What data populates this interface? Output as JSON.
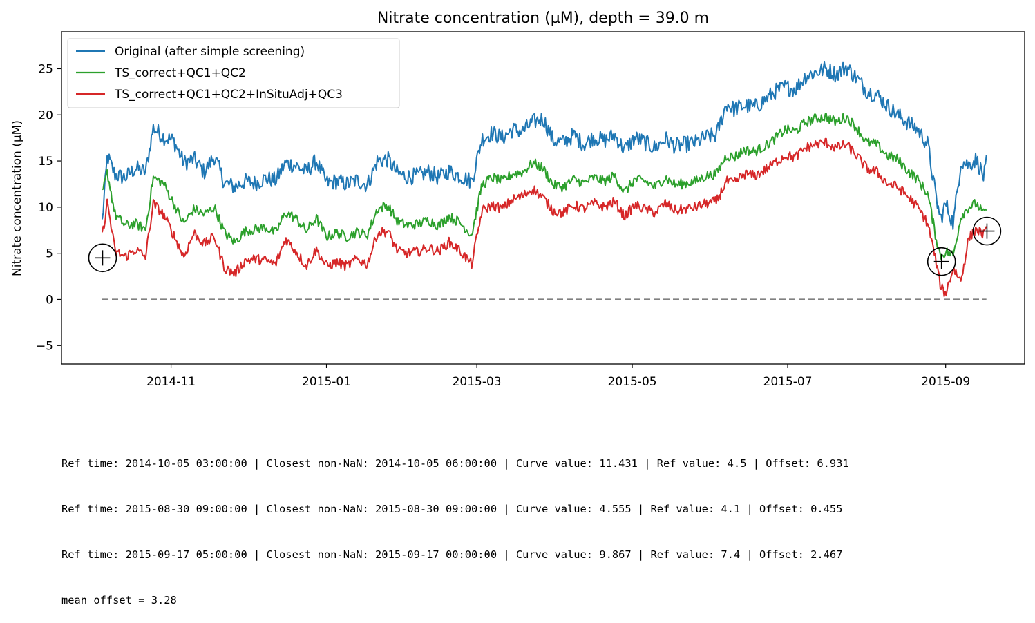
{
  "chart_data": {
    "type": "line",
    "title": "Nitrate concentration (µM), depth = 39.0 m",
    "xlabel": "",
    "ylabel": "Nitrate concentration (µM)",
    "xlim": [
      "2014-09-19",
      "2015-10-02"
    ],
    "ylim": [
      -7,
      29
    ],
    "x_ticks": [
      "2014-11",
      "2015-01",
      "2015-03",
      "2015-05",
      "2015-07",
      "2015-09"
    ],
    "y_ticks": [
      -5,
      0,
      5,
      10,
      15,
      20,
      25
    ],
    "grid": false,
    "legend_position": "upper-left",
    "colors": {
      "original": "#1f77b4",
      "qc2": "#2ca02c",
      "qc3": "#d62728",
      "zero_line": "#808080",
      "ref_marker": "#000000"
    },
    "series": [
      {
        "name": "Original (after simple screening)",
        "key": "original",
        "x": [
          "2014-10-05",
          "2014-10-07",
          "2014-10-10",
          "2014-10-14",
          "2014-10-18",
          "2014-10-22",
          "2014-10-25",
          "2014-10-29",
          "2014-11-02",
          "2014-11-06",
          "2014-11-10",
          "2014-11-14",
          "2014-11-18",
          "2014-11-22",
          "2014-11-26",
          "2014-11-30",
          "2014-12-04",
          "2014-12-08",
          "2014-12-12",
          "2014-12-16",
          "2014-12-20",
          "2014-12-24",
          "2014-12-28",
          "2015-01-01",
          "2015-01-05",
          "2015-01-09",
          "2015-01-13",
          "2015-01-17",
          "2015-01-21",
          "2015-01-25",
          "2015-01-29",
          "2015-02-02",
          "2015-02-06",
          "2015-02-10",
          "2015-02-14",
          "2015-02-18",
          "2015-02-22",
          "2015-02-27",
          "2015-03-03",
          "2015-03-07",
          "2015-03-11",
          "2015-03-15",
          "2015-03-19",
          "2015-03-23",
          "2015-03-27",
          "2015-03-31",
          "2015-04-04",
          "2015-04-08",
          "2015-04-12",
          "2015-04-16",
          "2015-04-20",
          "2015-04-24",
          "2015-04-28",
          "2015-05-02",
          "2015-05-06",
          "2015-05-10",
          "2015-05-14",
          "2015-05-18",
          "2015-05-22",
          "2015-05-26",
          "2015-05-30",
          "2015-06-03",
          "2015-06-07",
          "2015-06-10",
          "2015-06-14",
          "2015-06-18",
          "2015-06-22",
          "2015-06-26",
          "2015-06-30",
          "2015-07-04",
          "2015-07-08",
          "2015-07-12",
          "2015-07-16",
          "2015-07-20",
          "2015-07-24",
          "2015-07-28",
          "2015-08-01",
          "2015-08-05",
          "2015-08-09",
          "2015-08-13",
          "2015-08-17",
          "2015-08-21",
          "2015-08-25",
          "2015-08-28",
          "2015-08-30",
          "2015-09-01",
          "2015-09-04",
          "2015-09-07",
          "2015-09-10",
          "2015-09-13",
          "2015-09-16",
          "2015-09-17"
        ],
        "values": [
          8.4,
          15.5,
          13.5,
          13.2,
          14.2,
          13.8,
          18.6,
          17.6,
          17.2,
          14.8,
          15.2,
          13.8,
          15.5,
          12.6,
          12.2,
          12.8,
          12.6,
          13.1,
          12.9,
          14.8,
          14.5,
          13.8,
          15.0,
          12.6,
          12.8,
          12.5,
          12.9,
          12.4,
          15.0,
          15.2,
          13.6,
          13.3,
          13.4,
          13.8,
          13.2,
          13.9,
          13.4,
          12.8,
          17.4,
          18.0,
          17.5,
          18.4,
          18.2,
          19.2,
          19.6,
          17.2,
          17.0,
          17.8,
          16.8,
          17.6,
          17.2,
          17.8,
          16.2,
          17.5,
          17.0,
          16.4,
          17.4,
          16.6,
          16.8,
          17.0,
          17.6,
          17.8,
          21.2,
          20.6,
          21.0,
          20.8,
          21.6,
          22.5,
          23.0,
          22.8,
          24.2,
          24.6,
          25.0,
          24.4,
          25.2,
          24.0,
          22.6,
          22.2,
          21.0,
          20.0,
          19.2,
          18.4,
          16.8,
          11.4,
          8.6,
          10.4,
          8.2,
          15.0,
          14.6,
          15.2,
          13.2,
          14.8
        ]
      },
      {
        "name": "TS_correct+QC1+QC2",
        "key": "qc2",
        "x": [
          "2014-10-05",
          "2014-10-07",
          "2014-10-10",
          "2014-10-14",
          "2014-10-18",
          "2014-10-22",
          "2014-10-25",
          "2014-10-29",
          "2014-11-02",
          "2014-11-06",
          "2014-11-10",
          "2014-11-14",
          "2014-11-18",
          "2014-11-22",
          "2014-11-26",
          "2014-11-30",
          "2014-12-04",
          "2014-12-08",
          "2014-12-12",
          "2014-12-16",
          "2014-12-20",
          "2014-12-24",
          "2014-12-28",
          "2015-01-01",
          "2015-01-05",
          "2015-01-09",
          "2015-01-13",
          "2015-01-17",
          "2015-01-21",
          "2015-01-25",
          "2015-01-29",
          "2015-02-02",
          "2015-02-06",
          "2015-02-10",
          "2015-02-14",
          "2015-02-18",
          "2015-02-22",
          "2015-02-27",
          "2015-03-03",
          "2015-03-07",
          "2015-03-11",
          "2015-03-15",
          "2015-03-19",
          "2015-03-23",
          "2015-03-27",
          "2015-03-31",
          "2015-04-04",
          "2015-04-08",
          "2015-04-12",
          "2015-04-16",
          "2015-04-20",
          "2015-04-24",
          "2015-04-28",
          "2015-05-02",
          "2015-05-06",
          "2015-05-10",
          "2015-05-14",
          "2015-05-18",
          "2015-05-22",
          "2015-05-26",
          "2015-05-30",
          "2015-06-03",
          "2015-06-07",
          "2015-06-10",
          "2015-06-14",
          "2015-06-18",
          "2015-06-22",
          "2015-06-26",
          "2015-06-30",
          "2015-07-04",
          "2015-07-08",
          "2015-07-12",
          "2015-07-16",
          "2015-07-20",
          "2015-07-24",
          "2015-07-28",
          "2015-08-01",
          "2015-08-05",
          "2015-08-09",
          "2015-08-13",
          "2015-08-17",
          "2015-08-21",
          "2015-08-25",
          "2015-08-28",
          "2015-08-30",
          "2015-09-01",
          "2015-09-04",
          "2015-09-07",
          "2015-09-10",
          "2015-09-13",
          "2015-09-16",
          "2015-09-17"
        ],
        "values": [
          11.4,
          13.8,
          9.2,
          8.0,
          8.2,
          7.6,
          13.2,
          12.6,
          10.4,
          8.2,
          9.8,
          9.2,
          10.0,
          7.2,
          6.2,
          7.4,
          7.6,
          7.8,
          7.2,
          9.4,
          8.8,
          7.4,
          8.8,
          6.8,
          7.2,
          6.8,
          7.3,
          7.0,
          9.8,
          10.2,
          8.4,
          8.0,
          8.2,
          8.6,
          8.0,
          9.0,
          8.4,
          7.0,
          12.4,
          13.2,
          12.8,
          13.6,
          13.8,
          14.8,
          14.2,
          12.4,
          12.2,
          13.0,
          12.6,
          13.2,
          12.8,
          13.4,
          11.6,
          13.0,
          12.8,
          12.2,
          13.2,
          12.4,
          12.6,
          12.8,
          13.4,
          13.6,
          15.6,
          15.4,
          16.2,
          16.0,
          16.6,
          17.4,
          18.4,
          18.2,
          19.2,
          19.6,
          19.8,
          19.2,
          19.8,
          18.6,
          17.0,
          16.8,
          15.6,
          15.2,
          14.0,
          13.0,
          11.4,
          7.0,
          4.6,
          5.2,
          4.8,
          9.0,
          10.0,
          10.4,
          9.2,
          9.9
        ]
      },
      {
        "name": "TS_correct+QC1+QC2+InSituAdj+QC3",
        "key": "qc3",
        "x": [
          "2014-10-05",
          "2014-10-07",
          "2014-10-10",
          "2014-10-14",
          "2014-10-18",
          "2014-10-22",
          "2014-10-25",
          "2014-10-29",
          "2014-11-02",
          "2014-11-06",
          "2014-11-10",
          "2014-11-14",
          "2014-11-18",
          "2014-11-22",
          "2014-11-26",
          "2014-11-30",
          "2014-12-04",
          "2014-12-08",
          "2014-12-12",
          "2014-12-16",
          "2014-12-20",
          "2014-12-24",
          "2014-12-28",
          "2015-01-01",
          "2015-01-05",
          "2015-01-09",
          "2015-01-13",
          "2015-01-17",
          "2015-01-21",
          "2015-01-25",
          "2015-01-29",
          "2015-02-02",
          "2015-02-06",
          "2015-02-10",
          "2015-02-14",
          "2015-02-18",
          "2015-02-22",
          "2015-02-27",
          "2015-03-03",
          "2015-03-07",
          "2015-03-11",
          "2015-03-15",
          "2015-03-19",
          "2015-03-23",
          "2015-03-27",
          "2015-03-31",
          "2015-04-04",
          "2015-04-08",
          "2015-04-12",
          "2015-04-16",
          "2015-04-20",
          "2015-04-24",
          "2015-04-28",
          "2015-05-02",
          "2015-05-06",
          "2015-05-10",
          "2015-05-14",
          "2015-05-18",
          "2015-05-22",
          "2015-05-26",
          "2015-05-30",
          "2015-06-03",
          "2015-06-07",
          "2015-06-10",
          "2015-06-14",
          "2015-06-18",
          "2015-06-22",
          "2015-06-26",
          "2015-06-30",
          "2015-07-04",
          "2015-07-08",
          "2015-07-12",
          "2015-07-16",
          "2015-07-20",
          "2015-07-24",
          "2015-07-28",
          "2015-08-01",
          "2015-08-05",
          "2015-08-09",
          "2015-08-13",
          "2015-08-17",
          "2015-08-21",
          "2015-08-25",
          "2015-08-28",
          "2015-08-30",
          "2015-09-01",
          "2015-09-04",
          "2015-09-07",
          "2015-09-10",
          "2015-09-13",
          "2015-09-16",
          "2015-09-17"
        ],
        "values": [
          6.8,
          10.6,
          5.2,
          4.6,
          5.4,
          4.6,
          10.4,
          9.2,
          7.0,
          4.6,
          7.2,
          6.0,
          6.8,
          3.4,
          2.8,
          4.2,
          4.4,
          4.2,
          3.8,
          6.6,
          5.2,
          3.6,
          5.4,
          3.6,
          4.0,
          3.6,
          4.4,
          3.8,
          7.2,
          7.4,
          5.2,
          5.0,
          5.2,
          5.6,
          5.2,
          6.2,
          5.4,
          3.8,
          9.6,
          10.2,
          9.8,
          10.8,
          11.2,
          12.0,
          11.0,
          9.6,
          9.4,
          10.2,
          9.8,
          10.4,
          10.0,
          10.6,
          9.0,
          10.2,
          9.8,
          9.4,
          10.4,
          9.6,
          9.8,
          10.0,
          10.4,
          10.6,
          12.8,
          12.6,
          13.6,
          13.4,
          14.0,
          14.8,
          15.6,
          15.4,
          16.4,
          16.8,
          17.0,
          16.4,
          16.8,
          15.6,
          14.2,
          13.8,
          12.6,
          12.2,
          11.2,
          10.0,
          8.2,
          4.4,
          1.4,
          0.6,
          3.4,
          2.0,
          6.6,
          7.6,
          7.0,
          7.4
        ]
      }
    ],
    "zero_line": {
      "x": [
        "2014-10-05",
        "2015-09-17"
      ],
      "y": 0,
      "style": "dashed"
    },
    "reference_points": [
      {
        "x": "2014-10-05 03:00:00",
        "y": 4.5
      },
      {
        "x": "2015-08-30 09:00:00",
        "y": 4.1
      },
      {
        "x": "2015-09-17 05:00:00",
        "y": 7.4
      }
    ]
  },
  "info": {
    "line1": "Ref time: 2014-10-05 03:00:00 | Closest non-NaN: 2014-10-05 06:00:00 | Curve value: 11.431 | Ref value: 4.5 | Offset: 6.931",
    "line2": "Ref time: 2015-08-30 09:00:00 | Closest non-NaN: 2015-08-30 09:00:00 | Curve value: 4.555 | Ref value: 4.1 | Offset: 0.455",
    "line3": "Ref time: 2015-09-17 05:00:00 | Closest non-NaN: 2015-09-17 00:00:00 | Curve value: 9.867 | Ref value: 7.4 | Offset: 2.467",
    "line4": "mean_offset = 3.28"
  }
}
